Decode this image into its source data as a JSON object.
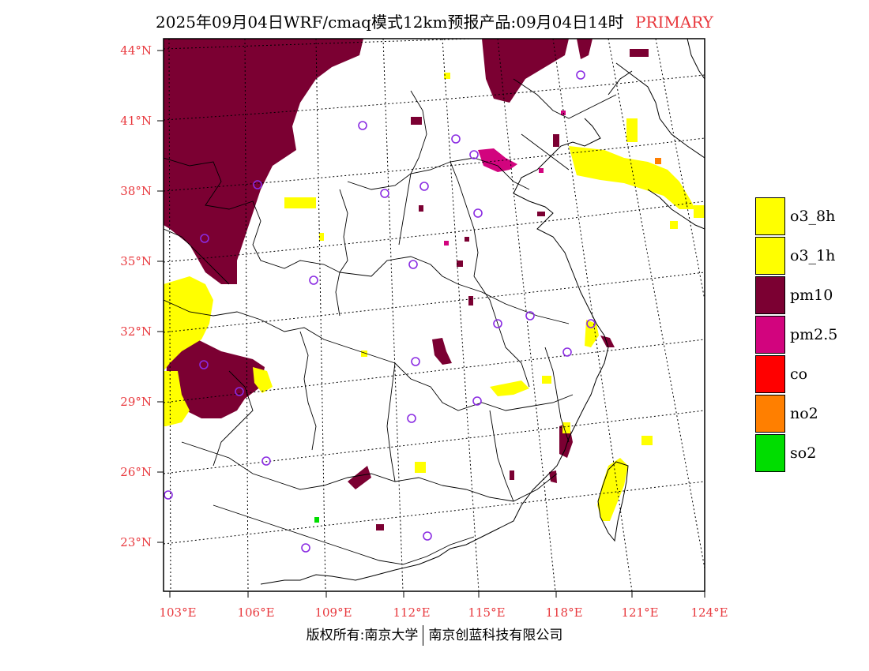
{
  "title": {
    "main": "2025年09月04日WRF/cmaq模式12km预报产品:09月04日14时",
    "type": "PRIMARY"
  },
  "axes": {
    "latitude_labels": [
      "44°N",
      "41°N",
      "38°N",
      "35°N",
      "32°N",
      "29°N",
      "26°N",
      "23°N"
    ],
    "longitude_labels": [
      "103°E",
      "106°E",
      "109°E",
      "112°E",
      "115°E",
      "118°E",
      "121°E",
      "124°E"
    ]
  },
  "legend": [
    {
      "label": "o3_8h",
      "color": "#ffff00"
    },
    {
      "label": "o3_1h",
      "color": "#ffff00"
    },
    {
      "label": "pm10",
      "color": "#7b0032"
    },
    {
      "label": "pm2.5",
      "color": "#d2047e"
    },
    {
      "label": "co",
      "color": "#ff0000"
    },
    {
      "label": "no2",
      "color": "#ff7f00"
    },
    {
      "label": "so2",
      "color": "#00dd00"
    }
  ],
  "footer": {
    "copyright": "版权所有:南京大学",
    "company": "南京创蓝科技有限公司"
  }
}
